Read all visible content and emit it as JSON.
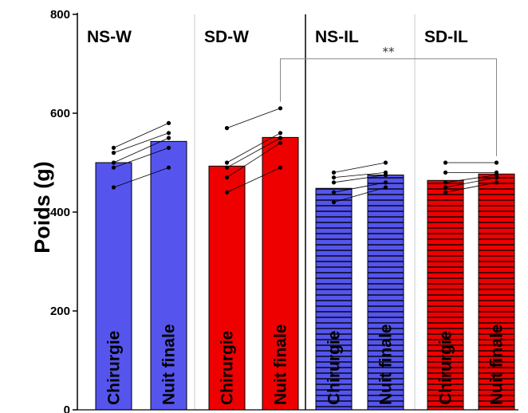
{
  "chart_data": {
    "type": "bar",
    "ylabel": "Poids (g)",
    "xlabel": "",
    "ylim": [
      0,
      800
    ],
    "yticks": [
      0,
      200,
      400,
      600,
      800
    ],
    "grid": false,
    "groups": [
      {
        "name": "NS-W",
        "bar_color": "#5555ee",
        "pattern": "solid",
        "bars": [
          {
            "label": "Chirurgie",
            "value": 500,
            "points": [
              530,
              520,
              500,
              490,
              450
            ]
          },
          {
            "label": "Nuit finale",
            "value": 543,
            "points": [
              580,
              560,
              550,
              530,
              490
            ]
          }
        ]
      },
      {
        "name": "SD-W",
        "bar_color": "#ee0000",
        "pattern": "solid",
        "bars": [
          {
            "label": "Chirurgie",
            "value": 493,
            "points": [
              570,
              500,
              490,
              470,
              440
            ]
          },
          {
            "label": "Nuit finale",
            "value": 551,
            "points": [
              610,
              560,
              550,
              540,
              490
            ]
          }
        ]
      },
      {
        "name": "NS-IL",
        "bar_color": "#5555ee",
        "pattern": "striped",
        "bars": [
          {
            "label": "Chirurgie",
            "value": 448,
            "points": [
              480,
              470,
              460,
              440,
              420
            ]
          },
          {
            "label": "Nuit finale",
            "value": 475,
            "points": [
              500,
              480,
              475,
              460,
              450
            ]
          }
        ]
      },
      {
        "name": "SD-IL",
        "bar_color": "#ee0000",
        "pattern": "striped",
        "bars": [
          {
            "label": "Chirurgie",
            "value": 464,
            "points": [
              500,
              480,
              460,
              450,
              440
            ]
          },
          {
            "label": "Nuit finale",
            "value": 477,
            "points": [
              500,
              480,
              475,
              470,
              460
            ]
          }
        ]
      }
    ],
    "annotations": [
      {
        "text": "**",
        "from_group": 1,
        "from_bar": 1,
        "to_group": 3,
        "to_bar": 1,
        "y": 710
      }
    ]
  }
}
